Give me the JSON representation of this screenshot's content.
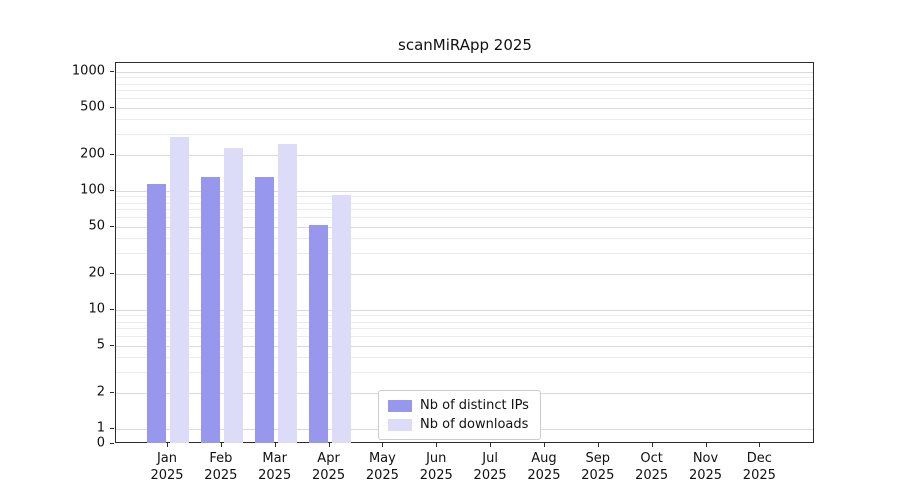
{
  "title": "scanMiRApp 2025",
  "chart_data": {
    "type": "bar",
    "title": "scanMiRApp 2025",
    "y_scale": "symlog",
    "grid": true,
    "legend_position": "inside-bottom-center",
    "categories": [
      "Jan",
      "Feb",
      "Mar",
      "Apr",
      "May",
      "Jun",
      "Jul",
      "Aug",
      "Sep",
      "Oct",
      "Nov",
      "Dec"
    ],
    "year_label": "2025",
    "y_ticks": [
      0,
      1,
      2,
      5,
      10,
      20,
      50,
      100,
      200,
      500,
      1000
    ],
    "ylim": [
      0,
      1200
    ],
    "series": [
      {
        "name": "Nb of distinct IPs",
        "color": "#9897ee",
        "values": [
          115,
          130,
          132,
          52,
          0,
          0,
          0,
          0,
          0,
          0,
          0,
          0
        ]
      },
      {
        "name": "Nb of downloads",
        "color": "#dcdcf9",
        "values": [
          285,
          230,
          248,
          92,
          0,
          0,
          0,
          0,
          0,
          0,
          0,
          0
        ]
      }
    ]
  },
  "colors": {
    "axis": "#2b2b2b",
    "grid_major": "#d9d9d9",
    "grid_minor": "#ececec",
    "legend_border": "#cccccc",
    "background": "#ffffff"
  }
}
